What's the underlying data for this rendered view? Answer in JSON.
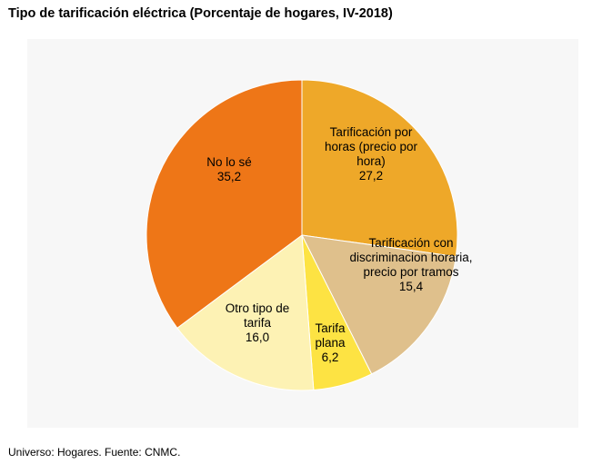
{
  "title": "Tipo de tarificación eléctrica (Porcentaje de hogares, IV-2018)",
  "footer": "Universo: Hogares. Fuente: CNMC.",
  "chart_data": {
    "type": "pie",
    "title": "Tipo de tarificación eléctrica (Porcentaje de hogares, IV-2018)",
    "slices": [
      {
        "label": [
          "Tarificación por",
          "horas (precio por",
          "hora)"
        ],
        "value": 27.2,
        "value_label": "27,2",
        "color": "#eea829"
      },
      {
        "label": [
          "Tarificación con",
          "discriminacion horaria,",
          "precio por tramos"
        ],
        "value": 15.4,
        "value_label": "15,4",
        "color": "#dfc08c"
      },
      {
        "label": [
          "Tarifa",
          "plana"
        ],
        "value": 6.2,
        "value_label": "6,2",
        "color": "#fde343"
      },
      {
        "label": [
          "Otro tipo de",
          "tarifa"
        ],
        "value": 16.0,
        "value_label": "16,0",
        "color": "#fdf2b4"
      },
      {
        "label": [
          "No lo sé"
        ],
        "value": 35.2,
        "value_label": "35,2",
        "color": "#ee7617"
      }
    ],
    "start_angle": "12 o'clock",
    "direction": "clockwise",
    "legend": "none",
    "footnote": "Universo: Hogares. Fuente: CNMC."
  }
}
